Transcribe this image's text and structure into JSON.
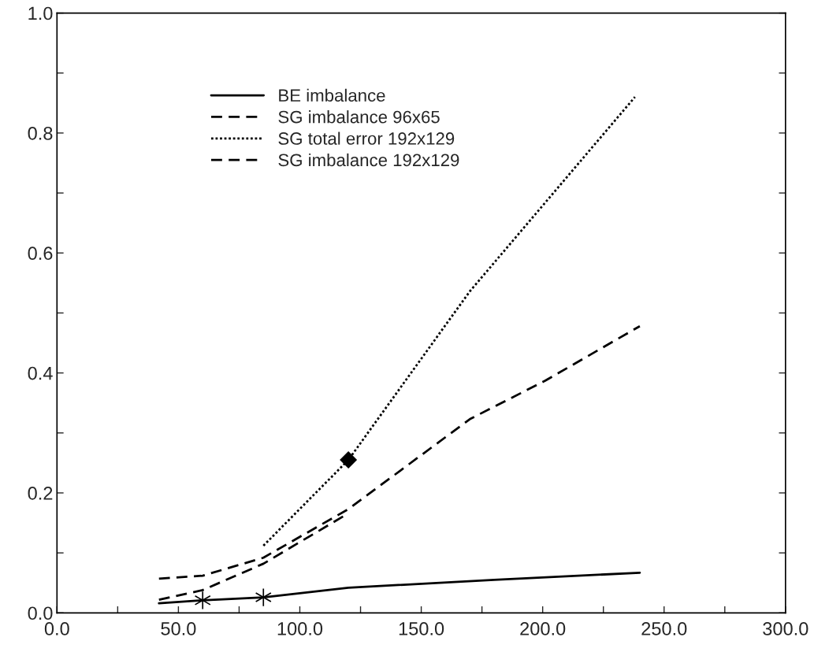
{
  "chart_data": {
    "type": "line",
    "series": [
      {
        "name": "BE imbalance",
        "color": "#000000",
        "line_style": "solid",
        "x": [
          42,
          60,
          85,
          120,
          180,
          240
        ],
        "values": [
          0.016,
          0.021,
          0.026,
          0.042,
          0.055,
          0.067
        ]
      },
      {
        "name": "SG imbalance 96x65",
        "color": "#000000",
        "line_style": "dashed",
        "x": [
          42,
          60,
          85,
          120,
          170,
          201,
          240
        ],
        "values": [
          0.057,
          0.062,
          0.092,
          0.173,
          0.323,
          0.387,
          0.478
        ]
      },
      {
        "name": "SG total error 192x129",
        "color": "#000000",
        "line_style": "dotted",
        "x": [
          85,
          120,
          170,
          238
        ],
        "values": [
          0.112,
          0.255,
          0.536,
          0.86
        ]
      },
      {
        "name": "SG imbalance 192x129",
        "color": "#000000",
        "line_style": "dashed",
        "x": [
          42,
          60,
          85,
          120
        ],
        "values": [
          0.022,
          0.038,
          0.082,
          0.166
        ]
      },
      {
        "type": "scatter",
        "color": "#000000",
        "marker": "cross",
        "x": [
          60,
          85
        ],
        "values": [
          0.021,
          0.026
        ]
      },
      {
        "type": "scatter",
        "color": "#000000",
        "marker": "diamond",
        "x": [
          120
        ],
        "values": [
          0.255
        ]
      }
    ],
    "xlim": [
      0,
      300
    ],
    "xticks": [
      {
        "value": 0,
        "label": "0.0"
      },
      {
        "value": 25,
        "label": null
      },
      {
        "value": 50,
        "label": "50.0"
      },
      {
        "value": 75,
        "label": null
      },
      {
        "value": 100,
        "label": "100.0"
      },
      {
        "value": 125,
        "label": null
      },
      {
        "value": 150,
        "label": "150.0"
      },
      {
        "value": 175,
        "label": null
      },
      {
        "value": 200,
        "label": "200.0"
      },
      {
        "value": 225,
        "label": null
      },
      {
        "value": 250,
        "label": "250.0"
      },
      {
        "value": 275,
        "label": null
      },
      {
        "value": 300,
        "label": "300.0"
      }
    ],
    "ylim": [
      0,
      1
    ],
    "yticks": [
      {
        "value": 0,
        "label": "0.0"
      },
      {
        "value": 0.1,
        "label": null
      },
      0.2,
      {
        "value": 0.3,
        "label": null
      },
      0.4,
      {
        "value": 0.5,
        "label": null
      },
      0.6,
      {
        "value": 0.7,
        "label": null
      },
      0.8,
      {
        "value": 0.9,
        "label": null
      },
      {
        "value": 1,
        "label": "1.0"
      }
    ],
    "grid": false,
    "legend": "top left"
  }
}
